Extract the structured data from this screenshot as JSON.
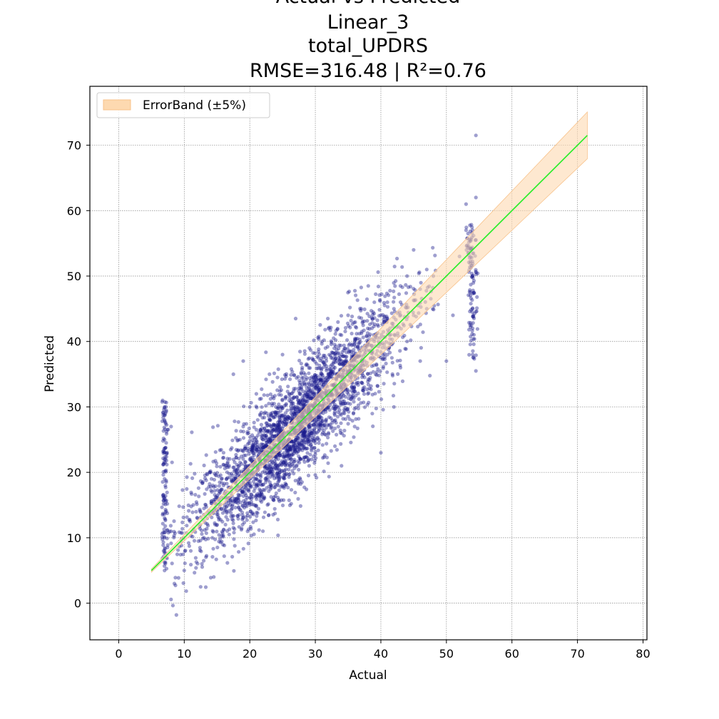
{
  "chart_data": {
    "type": "scatter",
    "title_lines": [
      "Actual vs Predicted",
      "Linear_3",
      "total_UPDRS",
      "RMSE=316.48   |   R²=0.76"
    ],
    "xlabel": "Actual",
    "ylabel": "Predicted",
    "xlim": [
      -4.4,
      80.6
    ],
    "ylim": [
      -5.6,
      79.0
    ],
    "xticks": [
      0,
      10,
      20,
      30,
      40,
      50,
      60,
      70,
      80
    ],
    "yticks": [
      0,
      10,
      20,
      30,
      40,
      50,
      60,
      70
    ],
    "grid": true,
    "legend": {
      "position": "top-left",
      "entries": [
        "ErrorBand (±5%)"
      ]
    },
    "reference_line": {
      "from": [
        5,
        5
      ],
      "to": [
        71.5,
        71.5
      ]
    },
    "error_band_pct": 5,
    "colors": {
      "points": "#1a1a8c",
      "reference_line": "#22ee22",
      "band": "#fdd9b0",
      "band_edge": "#f8c28a",
      "grid": "#888888"
    },
    "scatter_sample": [
      [
        7,
        30
      ],
      [
        7,
        28
      ],
      [
        7,
        25
      ],
      [
        7,
        22
      ],
      [
        7,
        19
      ],
      [
        7,
        16
      ],
      [
        7,
        13
      ],
      [
        7,
        10
      ],
      [
        7,
        8
      ],
      [
        7,
        5
      ],
      [
        8,
        27
      ],
      [
        8.5,
        3
      ],
      [
        8.8,
        -1.8
      ],
      [
        10,
        5
      ],
      [
        11,
        8
      ],
      [
        12,
        13
      ],
      [
        12.5,
        2.5
      ],
      [
        13,
        10
      ],
      [
        14,
        20
      ],
      [
        14.5,
        4
      ],
      [
        15,
        12
      ],
      [
        16,
        18
      ],
      [
        16,
        23
      ],
      [
        17,
        15
      ],
      [
        17.5,
        35
      ],
      [
        18,
        20
      ],
      [
        18.5,
        25
      ],
      [
        19,
        27
      ],
      [
        19,
        37
      ],
      [
        20,
        22
      ],
      [
        20,
        30
      ],
      [
        21,
        18
      ],
      [
        21,
        32
      ],
      [
        22,
        25
      ],
      [
        22,
        11
      ],
      [
        23,
        28
      ],
      [
        23,
        35
      ],
      [
        24,
        22
      ],
      [
        24,
        30
      ],
      [
        25,
        26
      ],
      [
        25,
        38
      ],
      [
        26,
        24
      ],
      [
        26,
        32
      ],
      [
        27,
        30
      ],
      [
        27,
        43.5
      ],
      [
        28,
        27
      ],
      [
        28,
        36
      ],
      [
        29,
        30
      ],
      [
        29,
        22
      ],
      [
        30,
        33
      ],
      [
        30,
        26
      ],
      [
        31,
        35
      ],
      [
        31,
        40
      ],
      [
        32,
        30
      ],
      [
        32,
        42
      ],
      [
        33,
        36
      ],
      [
        33,
        24
      ],
      [
        34,
        38
      ],
      [
        34,
        21
      ],
      [
        35,
        34
      ],
      [
        35,
        44
      ],
      [
        36,
        40
      ],
      [
        36,
        27
      ],
      [
        37,
        37
      ],
      [
        37,
        45
      ],
      [
        38,
        42
      ],
      [
        38,
        32
      ],
      [
        39,
        40
      ],
      [
        39,
        46
      ],
      [
        40,
        44
      ],
      [
        40,
        23
      ],
      [
        41,
        38
      ],
      [
        41,
        46
      ],
      [
        42,
        45
      ],
      [
        42,
        30
      ],
      [
        43,
        46
      ],
      [
        43,
        36
      ],
      [
        44,
        50
      ],
      [
        44,
        40
      ],
      [
        45,
        54
      ],
      [
        45,
        44
      ],
      [
        46,
        48
      ],
      [
        46,
        37
      ],
      [
        47,
        51
      ],
      [
        47,
        45
      ],
      [
        48,
        50
      ],
      [
        50,
        37
      ],
      [
        51,
        44
      ],
      [
        52,
        53
      ],
      [
        53,
        57
      ],
      [
        53,
        61
      ],
      [
        54,
        50
      ],
      [
        54,
        45
      ],
      [
        54,
        42
      ],
      [
        54,
        38
      ],
      [
        54.5,
        71.5
      ],
      [
        54.5,
        62
      ],
      [
        54.5,
        35.5
      ]
    ]
  }
}
